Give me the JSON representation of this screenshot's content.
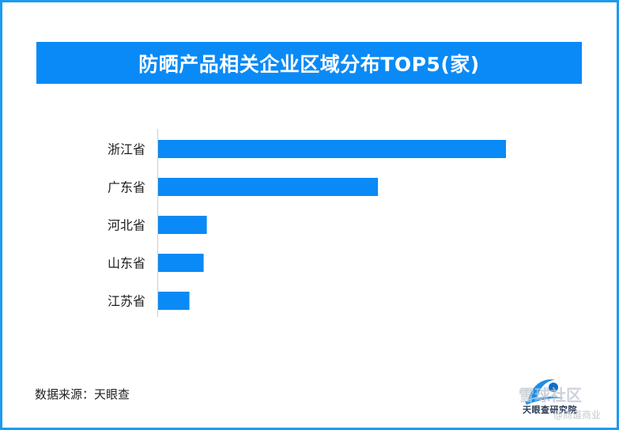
{
  "title": "防晒产品相关企业区域分布TOP5(家)",
  "source": "数据来源：天眼查",
  "logo": {
    "icon": "tianyancha-logo",
    "text": "天眼查研究院"
  },
  "watermark": {
    "main": "雪球社区",
    "sub": "@商道商业"
  },
  "colors": {
    "bar": "#0a8af6",
    "title_bg": "#0a8af6",
    "border": "#1a9bf0"
  },
  "chart_data": {
    "type": "bar",
    "orientation": "horizontal",
    "title": "防晒产品相关企业区域分布TOP5(家)",
    "categories": [
      "浙江省",
      "广东省",
      "河北省",
      "山东省",
      "江苏省"
    ],
    "values": [
      1000,
      632,
      140,
      131,
      90
    ],
    "xlim": [
      0,
      1050
    ],
    "xlabel": "",
    "ylabel": "",
    "grid": false,
    "legend": "none"
  }
}
